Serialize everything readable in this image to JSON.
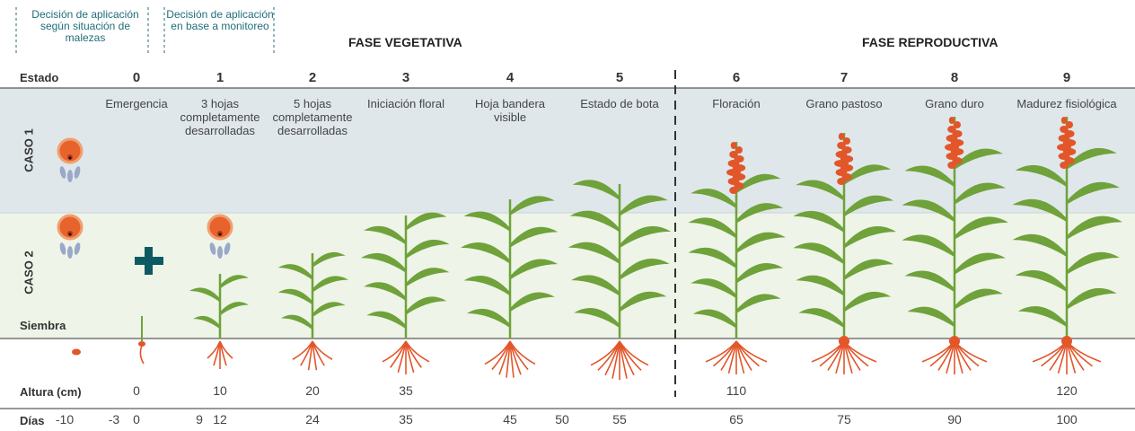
{
  "decisions": [
    "Decisión de aplicación según situación de malezas",
    "Decisión de aplicación en base a monitoreo"
  ],
  "phases": [
    "FASE VEGETATIVA",
    "FASE REPRODUCTIVA"
  ],
  "state_label": "Estado",
  "stages": [
    {
      "number": 0,
      "name": "Emergencia",
      "height": 0
    },
    {
      "number": 1,
      "name": "3 hojas completamente desarrolladas",
      "height": 10
    },
    {
      "number": 2,
      "name": "5 hojas completamente desarrolladas",
      "height": 20
    },
    {
      "number": 3,
      "name": "Iniciación floral",
      "height": 35
    },
    {
      "number": 4,
      "name": "Hoja bandera visible"
    },
    {
      "number": 5,
      "name": "Estado de bota"
    },
    {
      "number": 6,
      "name": "Floración",
      "height": 110
    },
    {
      "number": 7,
      "name": "Grano pastoso"
    },
    {
      "number": 8,
      "name": "Grano duro"
    },
    {
      "number": 9,
      "name": "Madurez fisiológica",
      "height": 120
    }
  ],
  "cases": [
    "CASO 1",
    "CASO 2"
  ],
  "sowing": "Siembra",
  "height_label": "Altura (cm)",
  "days_label": "Días",
  "days": [
    -10,
    -3,
    0,
    9,
    12,
    24,
    35,
    45,
    50,
    55,
    65,
    75,
    90,
    100
  ]
}
